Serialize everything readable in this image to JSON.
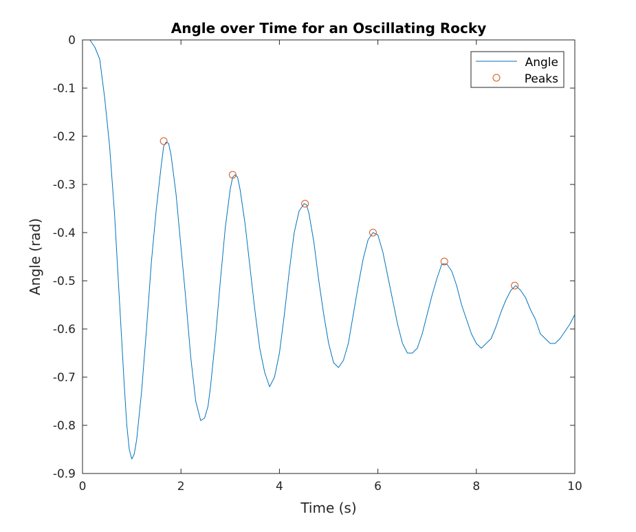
{
  "chart_data": {
    "type": "line",
    "title": "Angle over Time for an Oscillating Rocky",
    "xlabel": "Time (s)",
    "ylabel": "Angle (rad)",
    "xlim": [
      0,
      10
    ],
    "ylim": [
      -0.9,
      0
    ],
    "xticks": [
      0,
      2,
      4,
      6,
      8,
      10
    ],
    "yticks": [
      0,
      -0.1,
      -0.2,
      -0.3,
      -0.4,
      -0.5,
      -0.6,
      -0.7,
      -0.8,
      -0.9
    ],
    "xtick_labels": [
      "0",
      "2",
      "4",
      "6",
      "8",
      "10"
    ],
    "ytick_labels": [
      "0",
      "-0.1",
      "-0.2",
      "-0.3",
      "-0.4",
      "-0.5",
      "-0.6",
      "-0.7",
      "-0.8",
      "-0.9"
    ],
    "grid": false,
    "legend_position": "top-right",
    "series": [
      {
        "name": "Angle",
        "style": "line",
        "color": "#0072bd",
        "points": [
          [
            0.15,
            0.0
          ],
          [
            0.25,
            -0.015
          ],
          [
            0.35,
            -0.04
          ],
          [
            0.45,
            -0.12
          ],
          [
            0.55,
            -0.22
          ],
          [
            0.65,
            -0.36
          ],
          [
            0.75,
            -0.54
          ],
          [
            0.85,
            -0.72
          ],
          [
            0.9,
            -0.8
          ],
          [
            0.95,
            -0.85
          ],
          [
            1.0,
            -0.87
          ],
          [
            1.05,
            -0.86
          ],
          [
            1.1,
            -0.83
          ],
          [
            1.2,
            -0.73
          ],
          [
            1.3,
            -0.6
          ],
          [
            1.4,
            -0.46
          ],
          [
            1.5,
            -0.35
          ],
          [
            1.6,
            -0.26
          ],
          [
            1.65,
            -0.22
          ],
          [
            1.7,
            -0.212
          ],
          [
            1.75,
            -0.215
          ],
          [
            1.8,
            -0.24
          ],
          [
            1.9,
            -0.32
          ],
          [
            2.0,
            -0.43
          ],
          [
            2.1,
            -0.54
          ],
          [
            2.2,
            -0.66
          ],
          [
            2.3,
            -0.75
          ],
          [
            2.4,
            -0.79
          ],
          [
            2.48,
            -0.785
          ],
          [
            2.55,
            -0.76
          ],
          [
            2.6,
            -0.72
          ],
          [
            2.7,
            -0.62
          ],
          [
            2.8,
            -0.5
          ],
          [
            2.9,
            -0.39
          ],
          [
            3.0,
            -0.31
          ],
          [
            3.05,
            -0.285
          ],
          [
            3.1,
            -0.28
          ],
          [
            3.15,
            -0.285
          ],
          [
            3.2,
            -0.31
          ],
          [
            3.3,
            -0.38
          ],
          [
            3.4,
            -0.47
          ],
          [
            3.5,
            -0.56
          ],
          [
            3.6,
            -0.64
          ],
          [
            3.7,
            -0.69
          ],
          [
            3.8,
            -0.72
          ],
          [
            3.9,
            -0.7
          ],
          [
            4.0,
            -0.65
          ],
          [
            4.1,
            -0.57
          ],
          [
            4.2,
            -0.48
          ],
          [
            4.3,
            -0.4
          ],
          [
            4.4,
            -0.355
          ],
          [
            4.5,
            -0.34
          ],
          [
            4.55,
            -0.342
          ],
          [
            4.6,
            -0.36
          ],
          [
            4.7,
            -0.42
          ],
          [
            4.8,
            -0.5
          ],
          [
            4.9,
            -0.57
          ],
          [
            5.0,
            -0.63
          ],
          [
            5.1,
            -0.67
          ],
          [
            5.2,
            -0.68
          ],
          [
            5.3,
            -0.665
          ],
          [
            5.4,
            -0.63
          ],
          [
            5.5,
            -0.57
          ],
          [
            5.6,
            -0.51
          ],
          [
            5.7,
            -0.455
          ],
          [
            5.8,
            -0.415
          ],
          [
            5.9,
            -0.4
          ],
          [
            6.0,
            -0.405
          ],
          [
            6.1,
            -0.44
          ],
          [
            6.2,
            -0.49
          ],
          [
            6.3,
            -0.54
          ],
          [
            6.4,
            -0.59
          ],
          [
            6.5,
            -0.63
          ],
          [
            6.6,
            -0.65
          ],
          [
            6.7,
            -0.65
          ],
          [
            6.8,
            -0.64
          ],
          [
            6.9,
            -0.61
          ],
          [
            7.0,
            -0.57
          ],
          [
            7.1,
            -0.53
          ],
          [
            7.2,
            -0.495
          ],
          [
            7.3,
            -0.465
          ],
          [
            7.4,
            -0.465
          ],
          [
            7.5,
            -0.48
          ],
          [
            7.6,
            -0.51
          ],
          [
            7.7,
            -0.55
          ],
          [
            7.8,
            -0.58
          ],
          [
            7.9,
            -0.61
          ],
          [
            8.0,
            -0.63
          ],
          [
            8.1,
            -0.64
          ],
          [
            8.2,
            -0.63
          ],
          [
            8.3,
            -0.62
          ],
          [
            8.4,
            -0.595
          ],
          [
            8.5,
            -0.565
          ],
          [
            8.6,
            -0.54
          ],
          [
            8.7,
            -0.52
          ],
          [
            8.8,
            -0.51
          ],
          [
            8.9,
            -0.52
          ],
          [
            9.0,
            -0.535
          ],
          [
            9.1,
            -0.56
          ],
          [
            9.2,
            -0.58
          ],
          [
            9.3,
            -0.61
          ],
          [
            9.4,
            -0.62
          ],
          [
            9.5,
            -0.63
          ],
          [
            9.6,
            -0.63
          ],
          [
            9.7,
            -0.62
          ],
          [
            9.8,
            -0.605
          ],
          [
            9.9,
            -0.59
          ],
          [
            10.0,
            -0.57
          ]
        ]
      },
      {
        "name": "Peaks",
        "style": "marker",
        "marker": "circle",
        "color": "#d95319",
        "points": [
          [
            1.65,
            -0.21
          ],
          [
            3.05,
            -0.28
          ],
          [
            4.52,
            -0.34
          ],
          [
            5.9,
            -0.4
          ],
          [
            7.35,
            -0.46
          ],
          [
            8.78,
            -0.51
          ]
        ]
      }
    ]
  }
}
